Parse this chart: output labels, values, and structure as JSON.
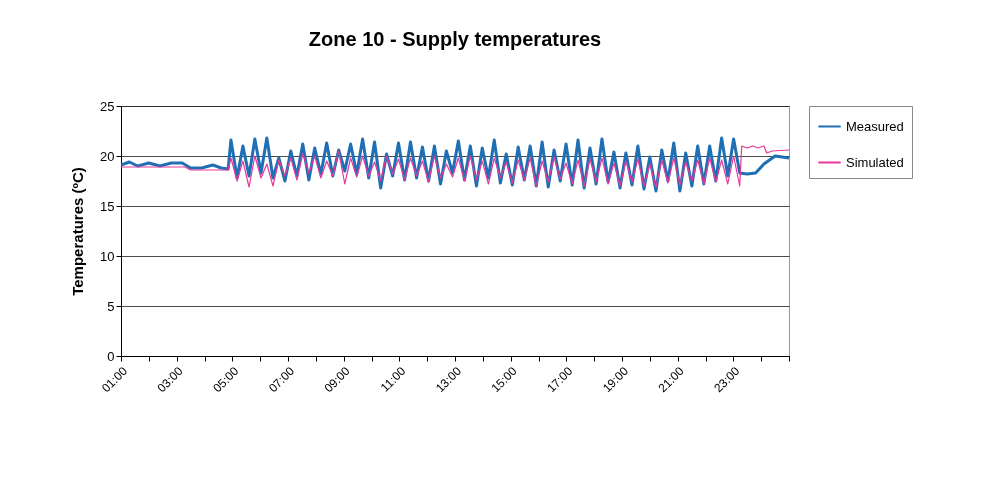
{
  "chart_data": {
    "type": "line",
    "title": "Zone 10 - Supply temperatures",
    "ylabel": "Temperatures (ºC)",
    "xlim": [
      1,
      25
    ],
    "xticks": [
      {
        "value": 1,
        "label": "01:00"
      },
      {
        "value": 2,
        "label": null
      },
      {
        "value": 3,
        "label": "03:00"
      },
      {
        "value": 4,
        "label": null
      },
      {
        "value": 5,
        "label": "05:00"
      },
      {
        "value": 6,
        "label": null
      },
      {
        "value": 7,
        "label": "07:00"
      },
      {
        "value": 8,
        "label": null
      },
      {
        "value": 9,
        "label": "09:00"
      },
      {
        "value": 10,
        "label": null
      },
      {
        "value": 11,
        "label": "11:00"
      },
      {
        "value": 12,
        "label": null
      },
      {
        "value": 13,
        "label": "13:00"
      },
      {
        "value": 14,
        "label": null
      },
      {
        "value": 15,
        "label": "15:00"
      },
      {
        "value": 16,
        "label": null
      },
      {
        "value": 17,
        "label": "17:00"
      },
      {
        "value": 18,
        "label": null
      },
      {
        "value": 19,
        "label": "19:00"
      },
      {
        "value": 20,
        "label": null
      },
      {
        "value": 21,
        "label": "21:00"
      },
      {
        "value": 22,
        "label": null
      },
      {
        "value": 23,
        "label": "23:00"
      },
      {
        "value": 24,
        "label": null
      },
      {
        "value": 25,
        "label": null
      }
    ],
    "ylim": [
      0,
      25
    ],
    "yticks": [
      0,
      5,
      10,
      15,
      20,
      25
    ],
    "grid": "y",
    "legend": "right",
    "series": [
      {
        "name": "Measured",
        "color": "#1f6fb4",
        "x": [
          1,
          1.3,
          1.6,
          2.0,
          2.4,
          2.8,
          3.2,
          3.5,
          3.9,
          4.3,
          4.6,
          4.85,
          4.95,
          5.17,
          5.38,
          5.6,
          5.81,
          6.03,
          6.24,
          6.46,
          6.67,
          6.89,
          7.1,
          7.32,
          7.53,
          7.75,
          7.96,
          8.18,
          8.39,
          8.61,
          8.82,
          9.04,
          9.25,
          9.47,
          9.68,
          9.9,
          10.11,
          10.33,
          10.54,
          10.76,
          10.97,
          11.19,
          11.4,
          11.62,
          11.83,
          12.05,
          12.26,
          12.48,
          12.69,
          12.91,
          13.12,
          13.34,
          13.55,
          13.77,
          13.98,
          14.2,
          14.41,
          14.63,
          14.84,
          15.06,
          15.27,
          15.49,
          15.7,
          15.92,
          16.13,
          16.35,
          16.56,
          16.78,
          16.99,
          17.21,
          17.42,
          17.64,
          17.85,
          18.07,
          18.28,
          18.5,
          18.71,
          18.93,
          19.14,
          19.36,
          19.57,
          19.79,
          20.0,
          20.22,
          20.43,
          20.65,
          20.86,
          21.08,
          21.29,
          21.51,
          21.72,
          21.94,
          22.15,
          22.37,
          22.58,
          22.8,
          23.01,
          23.23,
          23.5,
          23.8,
          24.1,
          24.3,
          24.5,
          25
        ],
        "values": [
          19.1,
          19.4,
          19.0,
          19.3,
          19.0,
          19.3,
          19.3,
          18.8,
          18.8,
          19.1,
          18.8,
          18.7,
          21.6,
          17.8,
          21.0,
          18.0,
          21.7,
          18.3,
          21.8,
          17.8,
          19.8,
          17.5,
          20.5,
          18.0,
          21.2,
          17.6,
          20.8,
          18.2,
          21.3,
          18.0,
          20.6,
          18.5,
          21.2,
          18.2,
          21.7,
          17.8,
          21.4,
          16.8,
          20.2,
          18.0,
          21.3,
          17.6,
          21.4,
          17.8,
          20.9,
          17.5,
          21.0,
          17.2,
          20.5,
          18.3,
          21.5,
          17.6,
          21.0,
          17.0,
          20.8,
          17.8,
          21.6,
          17.3,
          20.2,
          17.1,
          20.9,
          17.6,
          21.0,
          17.0,
          21.4,
          16.9,
          20.6,
          17.5,
          21.2,
          17.1,
          21.6,
          16.8,
          20.8,
          17.2,
          21.7,
          17.4,
          20.4,
          16.8,
          20.3,
          17.1,
          21.0,
          16.7,
          19.9,
          16.5,
          20.6,
          17.5,
          21.3,
          16.5,
          20.3,
          17.0,
          21.0,
          17.2,
          21.0,
          17.5,
          21.8,
          18.0,
          21.7,
          18.3,
          18.2,
          18.3,
          19.2,
          19.6,
          20.0,
          19.8
        ]
      },
      {
        "name": "Simulated",
        "color": "#e8389a",
        "x": [
          1,
          3.3,
          3.5,
          4.85,
          4.95,
          5.17,
          5.38,
          5.6,
          5.81,
          6.03,
          6.24,
          6.46,
          6.67,
          6.89,
          7.1,
          7.32,
          7.53,
          7.75,
          7.96,
          8.18,
          8.39,
          8.61,
          8.82,
          9.04,
          9.25,
          9.47,
          9.68,
          9.9,
          10.11,
          10.33,
          10.54,
          10.76,
          10.97,
          11.19,
          11.4,
          11.62,
          11.83,
          12.05,
          12.26,
          12.48,
          12.69,
          12.91,
          13.12,
          13.34,
          13.55,
          13.77,
          13.98,
          14.2,
          14.41,
          14.63,
          14.84,
          15.06,
          15.27,
          15.49,
          15.7,
          15.92,
          16.13,
          16.35,
          16.56,
          16.78,
          16.99,
          17.21,
          17.42,
          17.64,
          17.85,
          18.07,
          18.28,
          18.5,
          18.71,
          18.93,
          19.14,
          19.36,
          19.57,
          19.79,
          20.0,
          20.22,
          20.43,
          20.65,
          20.86,
          21.08,
          21.29,
          21.51,
          21.72,
          21.94,
          22.15,
          22.37,
          22.58,
          22.8,
          23.01,
          23.23,
          23.3,
          23.5,
          23.7,
          23.9,
          24.1,
          24.2,
          24.4,
          25
        ],
        "values": [
          18.9,
          18.9,
          18.6,
          18.6,
          19.8,
          17.5,
          19.5,
          16.9,
          20.0,
          17.8,
          19.2,
          17.0,
          19.6,
          18.0,
          19.8,
          17.6,
          20.2,
          18.3,
          20.0,
          17.8,
          19.5,
          18.0,
          20.5,
          17.2,
          19.8,
          17.9,
          20.0,
          18.0,
          19.4,
          17.5,
          20.0,
          18.2,
          19.7,
          17.6,
          19.8,
          18.0,
          19.5,
          17.4,
          20.0,
          17.8,
          19.2,
          17.9,
          19.8,
          17.5,
          20.0,
          17.6,
          19.5,
          17.2,
          19.8,
          17.8,
          19.4,
          17.3,
          19.6,
          17.6,
          19.8,
          17.0,
          19.5,
          17.4,
          19.9,
          17.7,
          19.3,
          17.2,
          19.6,
          17.0,
          19.7,
          17.4,
          19.8,
          17.2,
          19.3,
          17.0,
          19.5,
          17.4,
          19.7,
          17.0,
          19.2,
          16.9,
          19.6,
          17.3,
          19.8,
          17.1,
          19.4,
          17.5,
          19.6,
          17.2,
          19.8,
          17.4,
          19.6,
          17.2,
          20.0,
          17.0,
          21.0,
          20.8,
          21.0,
          20.8,
          21.0,
          20.3,
          20.5,
          20.6
        ]
      }
    ]
  }
}
